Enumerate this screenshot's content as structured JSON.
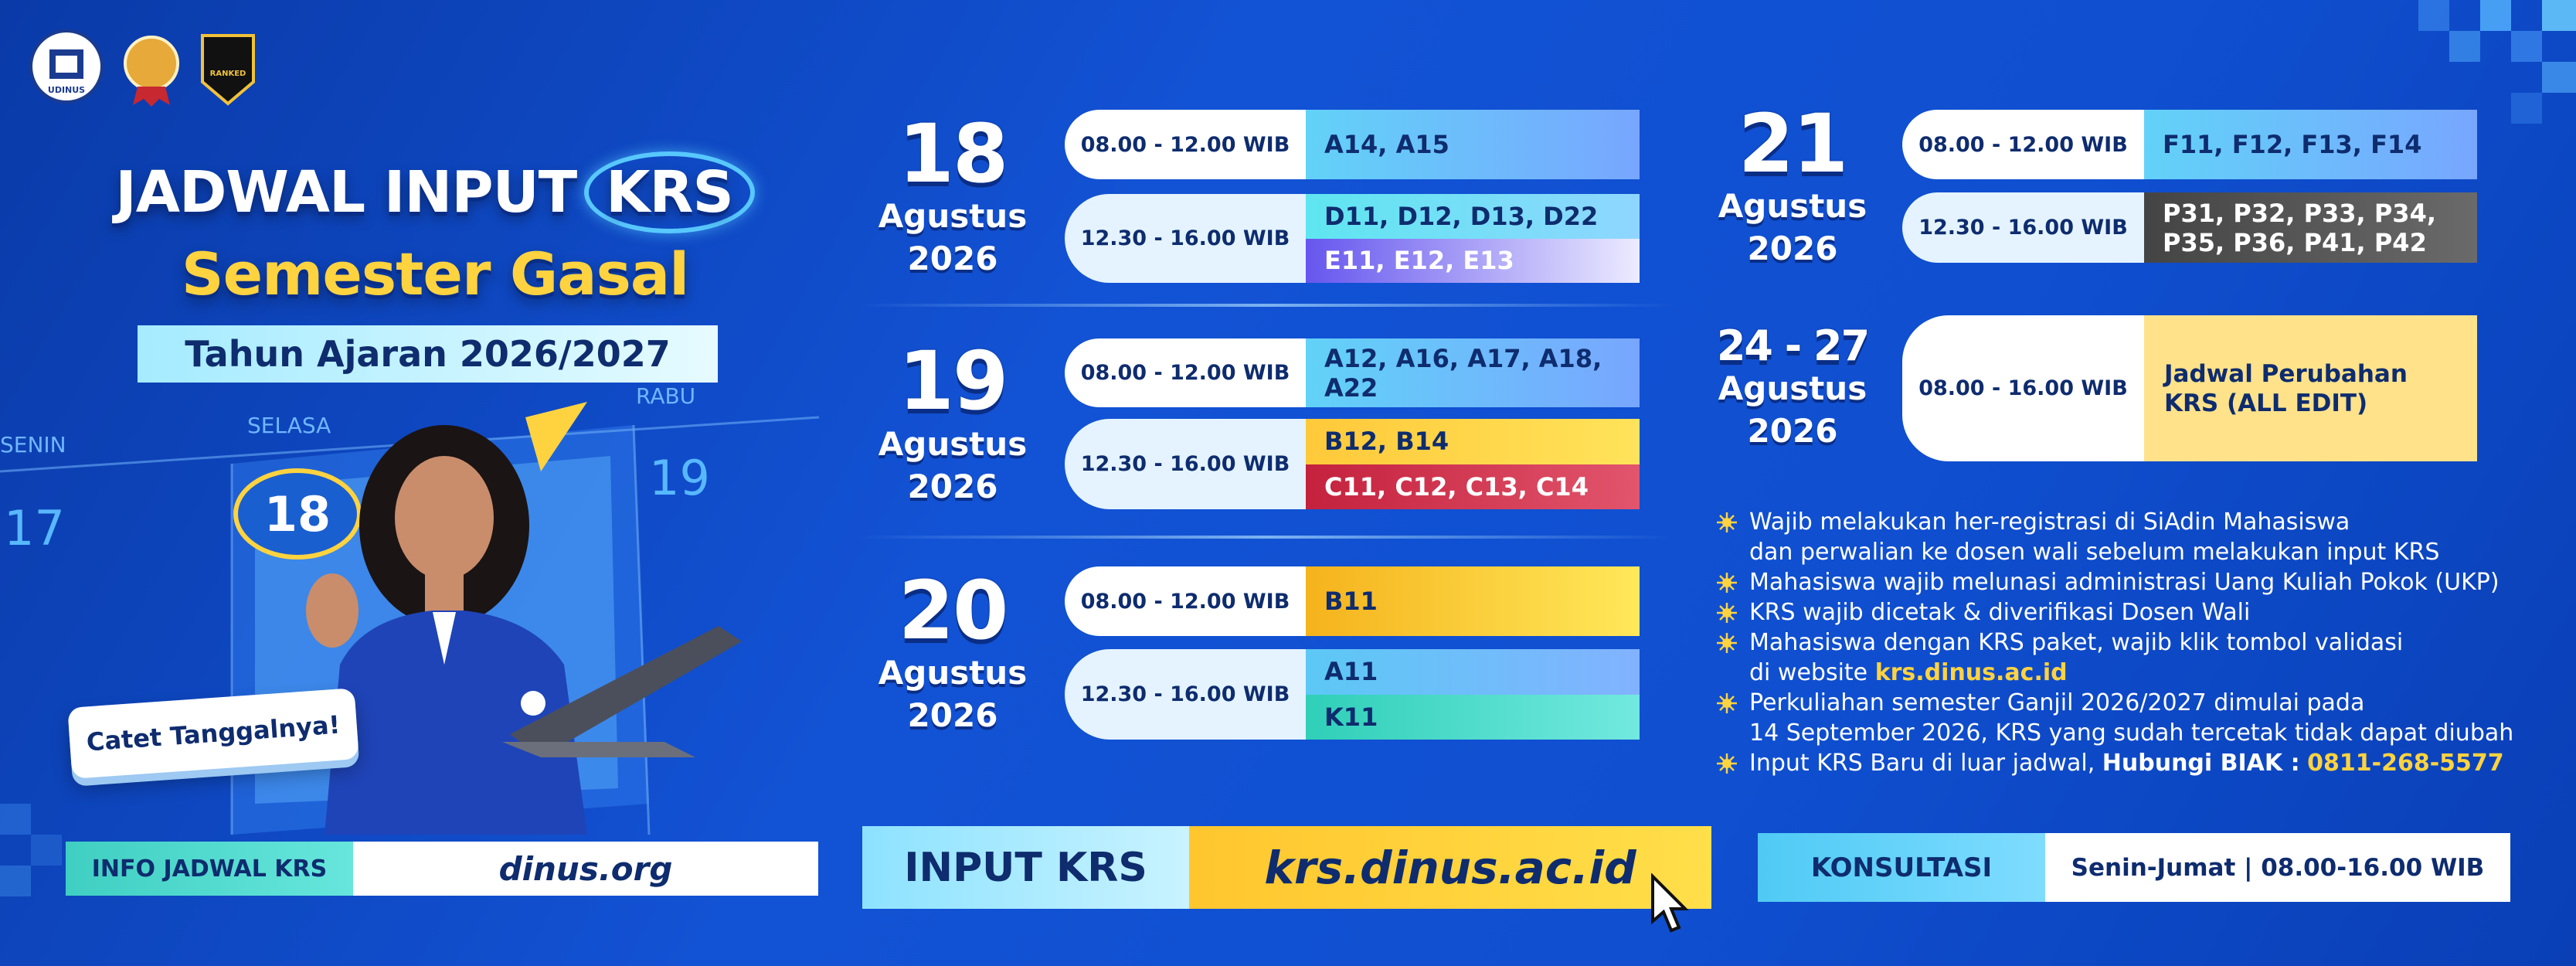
{
  "logos": {
    "university": "UDINUS",
    "badge": "RANKED"
  },
  "header": {
    "title": "JADWAL INPUT",
    "title_highlight": "KRS",
    "subtitle": "Semester Gasal",
    "academic_year": "Tahun Ajaran 2026/2027"
  },
  "illustration": {
    "days": [
      "SENIN",
      "SELASA",
      "RABU"
    ],
    "dates": [
      "17",
      "18",
      "19"
    ],
    "callout": "Catet Tanggalnya!"
  },
  "schedule": [
    {
      "day": "18",
      "month": "Agustus",
      "year": "2026",
      "sessions": [
        {
          "time": "08.00 - 12.00 WIB",
          "groups": [
            "A14, A15"
          ]
        },
        {
          "time": "12.30 - 16.00 WIB",
          "groups": [
            "D11, D12, D13, D22",
            "E11, E12, E13"
          ]
        }
      ]
    },
    {
      "day": "19",
      "month": "Agustus",
      "year": "2026",
      "sessions": [
        {
          "time": "08.00 - 12.00 WIB",
          "groups": [
            "A12, A16, A17, A18, A22"
          ]
        },
        {
          "time": "12.30 - 16.00 WIB",
          "groups": [
            "B12, B14",
            "C11, C12, C13, C14"
          ]
        }
      ]
    },
    {
      "day": "20",
      "month": "Agustus",
      "year": "2026",
      "sessions": [
        {
          "time": "08.00 - 12.00 WIB",
          "groups": [
            "B11"
          ]
        },
        {
          "time": "12.30 - 16.00 WIB",
          "groups": [
            "A11",
            "K11"
          ]
        }
      ]
    },
    {
      "day": "21",
      "month": "Agustus",
      "year": "2026",
      "sessions": [
        {
          "time": "08.00 - 12.00 WIB",
          "groups": [
            "F11, F12, F13, F14"
          ]
        },
        {
          "time": "12.30 - 16.00 WIB",
          "groups": [
            "P31, P32, P33, P34, P35, P36, P41, P42"
          ]
        }
      ]
    },
    {
      "day": "24 - 27",
      "month": "Agustus",
      "year": "2026",
      "sessions": [
        {
          "time": "08.00 - 16.00 WIB",
          "groups": [
            "Jadwal Perubahan KRS (ALL EDIT)"
          ]
        }
      ]
    }
  ],
  "notes": [
    {
      "lines": [
        "Wajib melakukan her-registrasi di SiAdin Mahasiswa",
        "dan perwalian ke dosen wali sebelum melakukan input KRS"
      ]
    },
    {
      "lines": [
        "Mahasiswa wajib melunasi administrasi Uang Kuliah Pokok (UKP)"
      ]
    },
    {
      "lines": [
        "KRS wajib dicetak & diverifikasi Dosen Wali"
      ]
    },
    {
      "lines": [
        "Mahasiswa dengan KRS paket, wajib klik tombol validasi",
        "di website"
      ],
      "link": "krs.dinus.ac.id"
    },
    {
      "lines": [
        "Perkuliahan semester Ganjil 2026/2027 dimulai pada",
        "14 September 2026, KRS yang sudah tercetak tidak dapat diubah"
      ]
    },
    {
      "lines": [
        "Input KRS Baru di luar jadwal,"
      ],
      "contact": "Hubungi BIAK :",
      "phone": "0811-268-5577"
    }
  ],
  "footer": [
    {
      "label": "INFO JADWAL KRS",
      "value": "dinus.org"
    },
    {
      "label": "INPUT KRS",
      "value": "krs.dinus.ac.id"
    },
    {
      "label": "KONSULTASI",
      "value": "Senin-Jumat | 08.00-16.00 WIB"
    }
  ]
}
